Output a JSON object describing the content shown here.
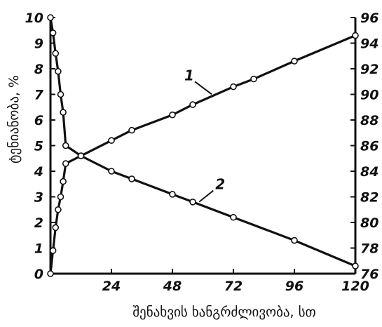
{
  "chart_data": {
    "type": "line",
    "xlabel": "შენახვის ხანგრძლივობა, სთ",
    "ylabel_left": "ტენიანობა, %",
    "xlim": [
      0,
      120
    ],
    "ylim_left": [
      0,
      10
    ],
    "ylim_right": [
      76,
      96
    ],
    "x_ticks": [
      "24",
      "48",
      "72",
      "96",
      "120"
    ],
    "y_ticks_left": [
      "0",
      "1",
      "2",
      "3",
      "4",
      "5",
      "6",
      "7",
      "8",
      "9",
      "10"
    ],
    "y_ticks_right": [
      "76",
      "78",
      "80",
      "82",
      "84",
      "86",
      "88",
      "90",
      "92",
      "94",
      "96"
    ],
    "series": [
      {
        "name": "1",
        "axis": "left",
        "x": [
          0,
          1,
          2,
          3,
          4,
          5,
          6,
          12,
          24,
          32,
          48,
          56,
          72,
          80,
          96,
          120
        ],
        "y": [
          0,
          0.9,
          1.8,
          2.5,
          3.0,
          3.6,
          4.3,
          4.6,
          5.2,
          5.6,
          6.2,
          6.6,
          7.3,
          7.6,
          8.3,
          9.3
        ]
      },
      {
        "name": "2",
        "axis": "left",
        "x": [
          0,
          1,
          2,
          3,
          4,
          5,
          6,
          12,
          24,
          32,
          48,
          56,
          72,
          96,
          120
        ],
        "y": [
          10,
          9.4,
          8.6,
          7.9,
          7.0,
          6.3,
          5.0,
          4.6,
          4.0,
          3.7,
          3.1,
          2.8,
          2.2,
          1.3,
          0.3
        ]
      }
    ],
    "grid": false
  }
}
